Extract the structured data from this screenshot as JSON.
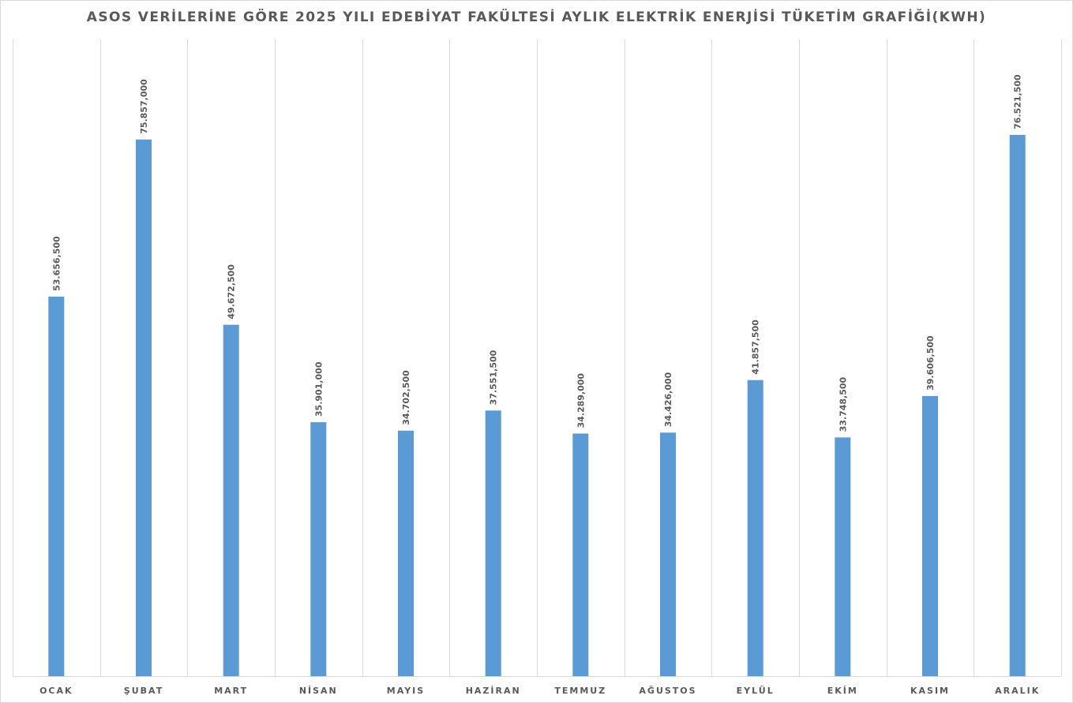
{
  "chart_data": {
    "type": "bar",
    "title": "ASOS VERİLERİNE GÖRE 2025 YILI EDEBİYAT FAKÜLTESİ AYLIK ELEKTRİK ENERJİSİ TÜKETİM GRAFİĞİ(KWH)",
    "xlabel": "",
    "ylabel": "",
    "categories": [
      "OCAK",
      "ŞUBAT",
      "MART",
      "NİSAN",
      "MAYIS",
      "HAZİRAN",
      "TEMMUZ",
      "AĞUSTOS",
      "EYLÜL",
      "EKİM",
      "KASIM",
      "ARALIK"
    ],
    "values": [
      53656.5,
      75857,
      49672.5,
      35901,
      34702.5,
      37551.5,
      34289,
      34426,
      41857.5,
      33748.5,
      39606.5,
      76521.5
    ],
    "data_labels": [
      "53.656,500",
      "75.857,000",
      "49.672,500",
      "35.901,000",
      "34.702,500",
      "37.551,500",
      "34.289,000",
      "34.426,000",
      "41.857,500",
      "33.748,500",
      "39.606,500",
      "76.521,500"
    ],
    "ylim": [
      0,
      90000
    ],
    "grid": "vertical",
    "legend": "none",
    "bar_color": "#5b9bd5",
    "grid_color": "#d9d9d9",
    "text_color": "#595959"
  }
}
